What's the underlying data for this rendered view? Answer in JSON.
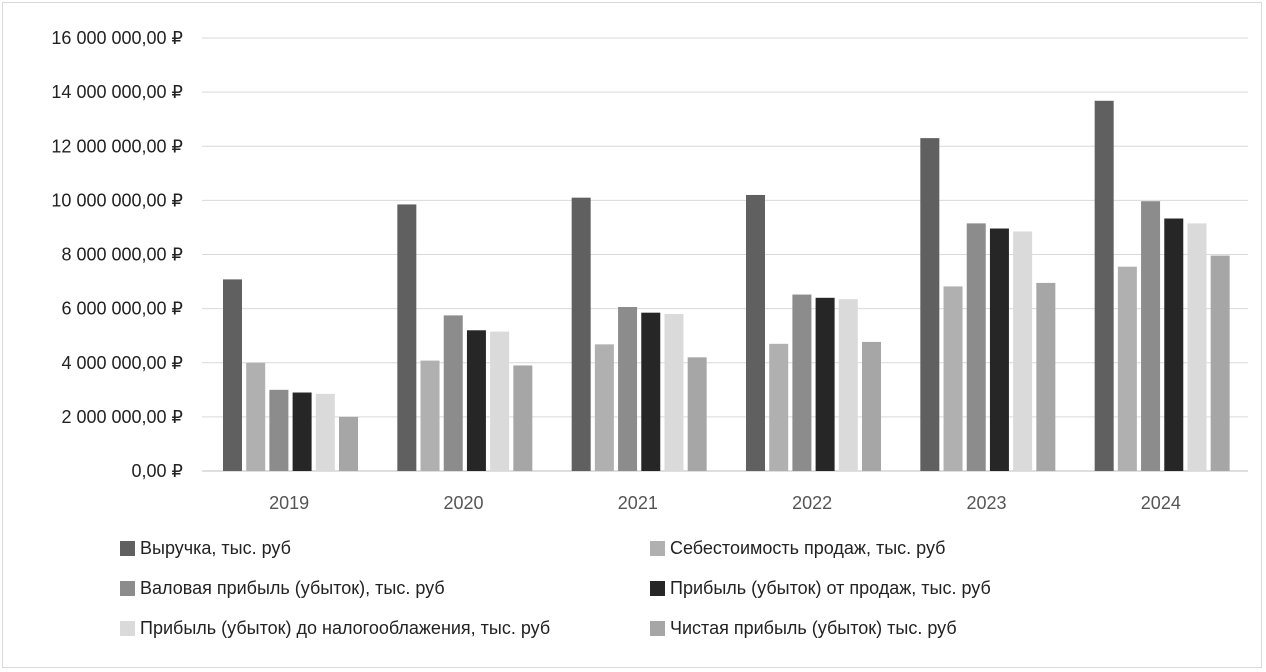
{
  "chart_data": {
    "type": "bar",
    "categories": [
      "2019",
      "2020",
      "2021",
      "2022",
      "2023",
      "2024"
    ],
    "ylim": [
      0,
      16000000
    ],
    "ytick_values": [
      0,
      2000000,
      4000000,
      6000000,
      8000000,
      10000000,
      12000000,
      14000000,
      16000000
    ],
    "ytick_labels": [
      "0,00 ₽",
      "2 000 000,00 ₽",
      "4 000 000,00 ₽",
      "6 000 000,00 ₽",
      "8 000 000,00 ₽",
      "10 000 000,00 ₽",
      "12 000 000,00 ₽",
      "14 000 000,00 ₽",
      "16 000 000,00 ₽"
    ],
    "grid": true,
    "legend_position": "bottom",
    "series": [
      {
        "name": "Выручка, тыс. руб",
        "color": "#606060",
        "values": [
          7080000,
          9850000,
          10100000,
          10200000,
          12300000,
          13680000
        ]
      },
      {
        "name": "Себестоимость продаж, тыс. руб",
        "color": "#b0b0b0",
        "values": [
          4000000,
          4080000,
          4680000,
          4700000,
          6820000,
          7550000
        ]
      },
      {
        "name": "Валовая прибыль (убыток), тыс. руб",
        "color": "#8c8c8c",
        "values": [
          3000000,
          5750000,
          6060000,
          6520000,
          9150000,
          9970000
        ]
      },
      {
        "name": "Прибыль (убыток) от продаж, тыс. руб",
        "color": "#262626",
        "values": [
          2900000,
          5200000,
          5850000,
          6400000,
          8960000,
          9330000
        ]
      },
      {
        "name": "Прибыль (убыток) до налогооблажения, тыс. руб",
        "color": "#dadada",
        "values": [
          2850000,
          5150000,
          5800000,
          6350000,
          8850000,
          9150000
        ]
      },
      {
        "name": "Чистая прибыль (убыток) тыс. руб",
        "color": "#a6a6a6",
        "values": [
          2000000,
          3900000,
          4200000,
          4770000,
          6950000,
          7960000
        ]
      }
    ]
  }
}
